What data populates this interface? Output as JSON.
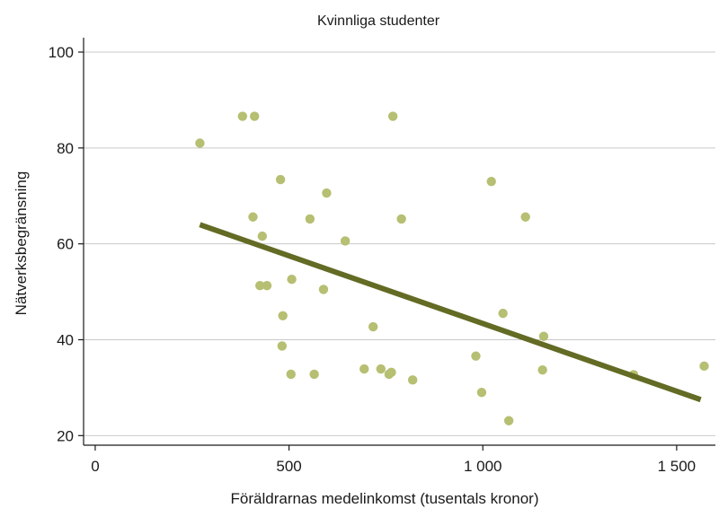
{
  "chart_data": {
    "type": "scatter",
    "title": "Kvinnliga studenter",
    "xlabel": "Föräldrarnas medelinkomst (tusentals kronor)",
    "ylabel": "Nätverksbegränsning",
    "xlim": [
      -30,
      1600
    ],
    "ylim": [
      18,
      103
    ],
    "x_ticks": [
      0,
      500,
      1000,
      1500
    ],
    "x_tick_labels": [
      "0",
      "500",
      "1 000",
      "1 500"
    ],
    "y_ticks": [
      20,
      40,
      60,
      80,
      100
    ],
    "y_tick_labels": [
      "20",
      "40",
      "60",
      "80",
      "100"
    ],
    "grid": true,
    "point_color": "#b6bf72",
    "line_color": "#636b24",
    "points": [
      {
        "x": 270,
        "y": 81.0
      },
      {
        "x": 380,
        "y": 86.6
      },
      {
        "x": 411,
        "y": 86.6
      },
      {
        "x": 768,
        "y": 86.6
      },
      {
        "x": 478,
        "y": 73.4
      },
      {
        "x": 597,
        "y": 70.6
      },
      {
        "x": 1022,
        "y": 73.0
      },
      {
        "x": 407,
        "y": 65.6
      },
      {
        "x": 554,
        "y": 65.2
      },
      {
        "x": 790,
        "y": 65.2
      },
      {
        "x": 1110,
        "y": 65.6
      },
      {
        "x": 431,
        "y": 61.6
      },
      {
        "x": 645,
        "y": 60.6
      },
      {
        "x": 425,
        "y": 51.3
      },
      {
        "x": 443,
        "y": 51.3
      },
      {
        "x": 507,
        "y": 52.6
      },
      {
        "x": 589,
        "y": 50.5
      },
      {
        "x": 484,
        "y": 45.0
      },
      {
        "x": 717,
        "y": 42.7
      },
      {
        "x": 1052,
        "y": 45.5
      },
      {
        "x": 1157,
        "y": 40.7
      },
      {
        "x": 482,
        "y": 38.7
      },
      {
        "x": 505,
        "y": 32.8
      },
      {
        "x": 565,
        "y": 32.8
      },
      {
        "x": 694,
        "y": 33.9
      },
      {
        "x": 737,
        "y": 33.9
      },
      {
        "x": 758,
        "y": 32.8
      },
      {
        "x": 764,
        "y": 33.2
      },
      {
        "x": 819,
        "y": 31.6
      },
      {
        "x": 982,
        "y": 36.6
      },
      {
        "x": 997,
        "y": 29.0
      },
      {
        "x": 1067,
        "y": 23.1
      },
      {
        "x": 1154,
        "y": 33.7
      },
      {
        "x": 1389,
        "y": 32.7
      },
      {
        "x": 1571,
        "y": 34.5
      }
    ],
    "fit_line": {
      "x": [
        270,
        1562
      ],
      "y": [
        64.0,
        27.5
      ]
    }
  }
}
